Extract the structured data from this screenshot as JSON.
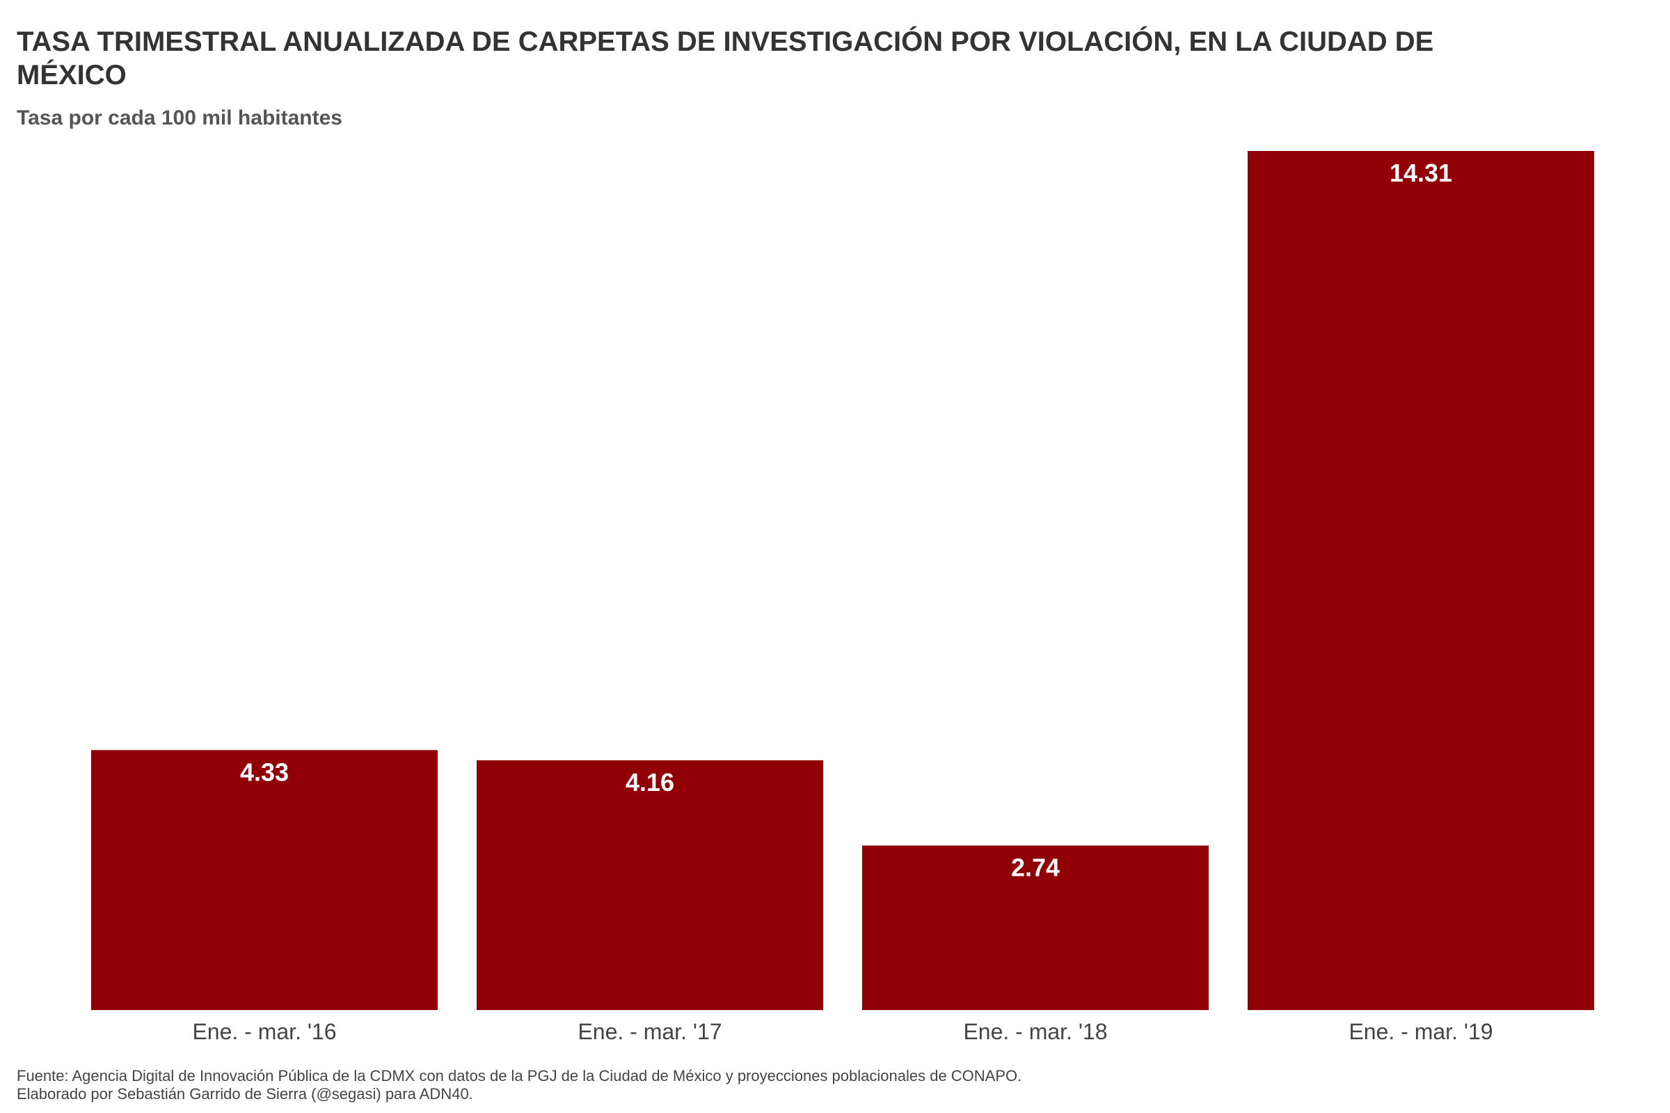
{
  "chart_data": {
    "type": "bar",
    "title": "TASA TRIMESTRAL ANUALIZADA DE CARPETAS DE INVESTIGACIÓN POR VIOLACIÓN, EN LA CIUDAD DE MÉXICO",
    "subtitle": "Tasa por cada 100 mil habitantes",
    "categories": [
      "Ene. - mar. '16",
      "Ene. - mar. '17",
      "Ene. - mar. '18",
      "Ene. - mar. '19"
    ],
    "values": [
      4.33,
      4.16,
      2.74,
      14.31
    ],
    "value_labels": [
      "4.33",
      "4.16",
      "2.74",
      "14.31"
    ],
    "xlabel": "",
    "ylabel": "",
    "ylim": [
      0,
      14.31
    ],
    "grid": false,
    "legend": "none",
    "bar_color": "#910006",
    "label_color": "#ffffff"
  },
  "caption": {
    "line1": "Fuente: Agencia Digital de Innovación Pública de la CDMX con datos de la PGJ de la Ciudad de México y proyecciones poblacionales de CONAPO.",
    "line2": "Elaborado por Sebastián Garrido de Sierra (@segasi) para ADN40."
  }
}
